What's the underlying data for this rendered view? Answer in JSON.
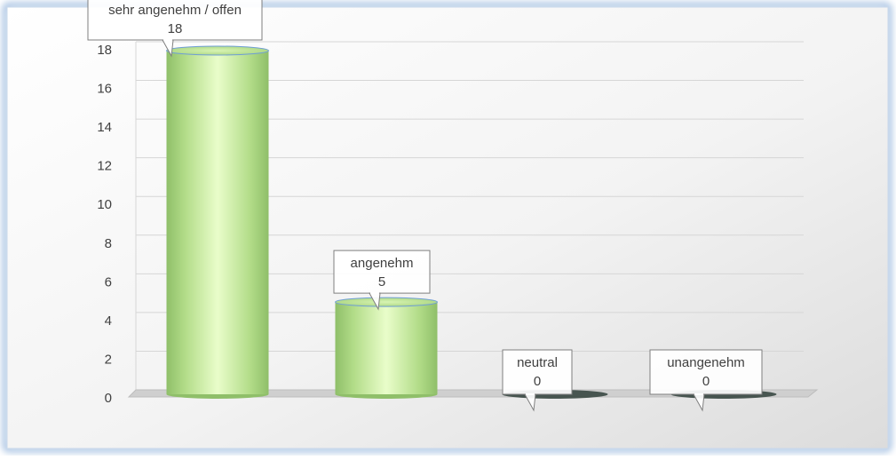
{
  "chart_data": {
    "type": "bar",
    "title": "",
    "xlabel": "",
    "ylabel": "",
    "categories": [
      "sehr angenehm / offen",
      "angenehm",
      "neutral",
      "unangenehm"
    ],
    "values": [
      18,
      5,
      0,
      0
    ],
    "data_labels": [
      {
        "category": "sehr angenehm / offen",
        "value": "18"
      },
      {
        "category": "angenehm",
        "value": "5"
      },
      {
        "category": "neutral",
        "value": "0"
      },
      {
        "category": "unangenehm",
        "value": "0"
      }
    ],
    "ylim": [
      0,
      18
    ],
    "yticks": [
      "0",
      "2",
      "4",
      "6",
      "8",
      "10",
      "12",
      "14",
      "16",
      "18"
    ],
    "grid": true,
    "legend": "none",
    "bar_style": "cylinder",
    "colors": {
      "bar_light": "#e4fbc4",
      "bar_mid": "#b7e08e",
      "bar_dark": "#8fbf69",
      "bar_edge": "#7aa35a",
      "gridline": "#d6d6d6",
      "tick_text": "#404040",
      "label_border": "#7f7f7f",
      "frame_glow": "#b8cde6",
      "background_light": "#fdfdfd",
      "background_dark": "#e2e2e2"
    }
  }
}
